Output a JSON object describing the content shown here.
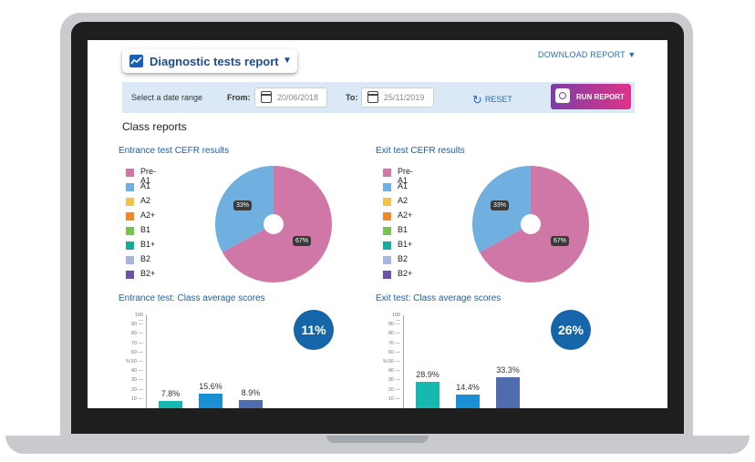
{
  "header": {
    "report_title": "Diagnostic tests report",
    "download_label": "DOWNLOAD REPORT ▼"
  },
  "filters": {
    "select_label": "Select a date range",
    "from_label": "From:",
    "from_value": "20/06/2018",
    "to_label": "To:",
    "to_value": "25/11/2019",
    "reset_label": "RESET",
    "run_label": "RUN REPORT"
  },
  "section_title": "Class reports",
  "legend": [
    {
      "label": "Pre-A1",
      "color": "#cf77a6"
    },
    {
      "label": "A1",
      "color": "#6fb0e0"
    },
    {
      "label": "A2",
      "color": "#f1c24c"
    },
    {
      "label": "A2+",
      "color": "#ef8a2b"
    },
    {
      "label": "B1",
      "color": "#7cc04f"
    },
    {
      "label": "B1+",
      "color": "#1aa99a"
    },
    {
      "label": "B2",
      "color": "#a6b6dc"
    },
    {
      "label": "B2+",
      "color": "#6a55a5"
    }
  ],
  "chart_data": [
    {
      "type": "pie",
      "title": "Entrance test CEFR results",
      "categories": [
        "Pre-A1",
        "A1"
      ],
      "values": [
        67,
        33
      ],
      "labels": [
        "67%",
        "33%"
      ]
    },
    {
      "type": "pie",
      "title": "Exit test CEFR results",
      "categories": [
        "Pre-A1",
        "A1"
      ],
      "values": [
        67,
        33
      ],
      "labels": [
        "67%",
        "33%"
      ]
    },
    {
      "type": "bar",
      "title": "Entrance test: Class average scores",
      "badge": "11%",
      "ylabel": "%",
      "ylim": [
        0,
        100
      ],
      "yticks": [
        "100",
        "90",
        "80",
        "70",
        "60",
        "50",
        "40",
        "30",
        "20",
        "10"
      ],
      "values": [
        7.8,
        15.6,
        8.9
      ],
      "labels": [
        "7.8%",
        "15.6%",
        "8.9%"
      ],
      "colors": [
        "#17b8b0",
        "#1a8fd4",
        "#4f6cae"
      ]
    },
    {
      "type": "bar",
      "title": "Exit test: Class average scores",
      "badge": "26%",
      "ylabel": "%",
      "ylim": [
        0,
        100
      ],
      "yticks": [
        "100",
        "90",
        "80",
        "70",
        "60",
        "50",
        "40",
        "30",
        "20",
        "10"
      ],
      "values": [
        28.9,
        14.4,
        33.3
      ],
      "labels": [
        "28.9%",
        "14.4%",
        "33.3%"
      ],
      "colors": [
        "#17b8b0",
        "#1a8fd4",
        "#4f6cae"
      ]
    }
  ]
}
